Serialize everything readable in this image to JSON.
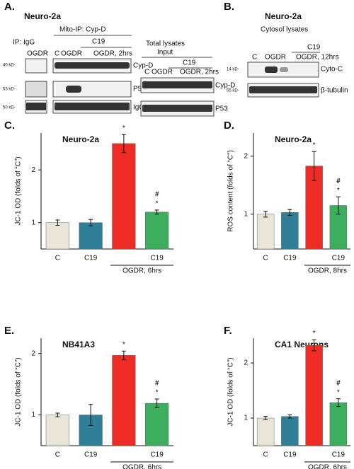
{
  "panel_a": {
    "letter": "A.",
    "title": "Neuro-2a",
    "ip_heading": "Mito-IP: Cyp-D",
    "ip_control": "IP: IgG",
    "drug": "C19",
    "control_lanes": [
      "OGDR"
    ],
    "ip_lanes": [
      "C",
      "OGDR",
      "OGDR, 2hrs"
    ],
    "markers": [
      "40 kD-",
      "53 kD-",
      "50 kD-"
    ],
    "rows": [
      "Cyp-D",
      "P53",
      "IgG"
    ],
    "input_heading": [
      "Total lysates",
      "Input"
    ],
    "input_drug": "C19",
    "input_lanes": [
      "C",
      "OGDR",
      "OGDR, 2hrs"
    ],
    "input_rows": [
      "Cyp-D",
      "P53"
    ]
  },
  "panel_b": {
    "letter": "B.",
    "title": "Neuro-2a",
    "subtitle": "Cytosol lysates",
    "drug": "C19",
    "lanes": [
      "C",
      "OGDR",
      "OGDR, 12hrs"
    ],
    "markers": [
      "14 kD-",
      "55 kD-"
    ],
    "rows": [
      "Cyto-C",
      "β-tubulin"
    ]
  },
  "chart_data": [
    {
      "type": "bar",
      "letter": "C.",
      "title": "Neuro-2a",
      "y_label": "JC-1 OD (folds of “C”)",
      "categories": [
        "C",
        "C19",
        null,
        "C19"
      ],
      "treatment": "OGDR, 6hrs",
      "colors": [
        "#e9e5d9",
        "#2f7f98",
        "#ee2b24",
        "#3cae5d"
      ],
      "values": [
        1.0,
        1.0,
        2.5,
        1.2
      ],
      "errors": [
        0.05,
        0.06,
        0.17,
        0.04
      ],
      "star_labels": [
        null,
        null,
        "*",
        "*"
      ],
      "hash_labels": [
        null,
        null,
        null,
        "#"
      ],
      "ylim": [
        0.5,
        2.7
      ],
      "yticks": [
        1,
        2
      ]
    },
    {
      "type": "bar",
      "letter": "D.",
      "title": "Neuro-2a",
      "y_label": "ROS content (folds of “C”)",
      "categories": [
        "C",
        "C19",
        null,
        "C19"
      ],
      "treatment": "OGDR, 8hrs",
      "colors": [
        "#e9e5d9",
        "#2f7f98",
        "#ee2b24",
        "#3cae5d"
      ],
      "values": [
        1.0,
        1.03,
        1.83,
        1.15
      ],
      "errors": [
        0.05,
        0.05,
        0.25,
        0.15
      ],
      "star_labels": [
        null,
        null,
        "*",
        "*"
      ],
      "hash_labels": [
        null,
        null,
        null,
        "#"
      ],
      "ylim": [
        0.4,
        2.4
      ],
      "yticks": [
        1,
        2
      ]
    },
    {
      "type": "bar",
      "letter": "E.",
      "title": "NB41A3",
      "y_label": "JC-1 OD (folds of “C”)",
      "categories": [
        "C",
        "C19",
        null,
        "C19"
      ],
      "treatment": "OGDR, 6hrs",
      "colors": [
        "#e9e5d9",
        "#2f7f98",
        "#ee2b24",
        "#3cae5d"
      ],
      "values": [
        1.0,
        1.0,
        1.97,
        1.19
      ],
      "errors": [
        0.03,
        0.17,
        0.07,
        0.07
      ],
      "star_labels": [
        null,
        null,
        "*",
        "*"
      ],
      "hash_labels": [
        null,
        null,
        null,
        "#"
      ],
      "ylim": [
        0.5,
        2.25
      ],
      "yticks": [
        1,
        2
      ]
    },
    {
      "type": "bar",
      "letter": "F.",
      "title": "CA1 Neurons",
      "y_label": "JC-1 OD (folds of “C”)",
      "categories": [
        "C",
        "C19",
        null,
        "C19"
      ],
      "treatment": "OGDR, 6hrs",
      "colors": [
        "#e9e5d9",
        "#2f7f98",
        "#ee2b24",
        "#3cae5d"
      ],
      "values": [
        1.0,
        1.03,
        2.32,
        1.28
      ],
      "errors": [
        0.03,
        0.03,
        0.1,
        0.07
      ],
      "star_labels": [
        null,
        null,
        "*",
        "*"
      ],
      "hash_labels": [
        null,
        null,
        null,
        "#"
      ],
      "ylim": [
        0.5,
        2.45
      ],
      "yticks": [
        1,
        2
      ]
    }
  ]
}
